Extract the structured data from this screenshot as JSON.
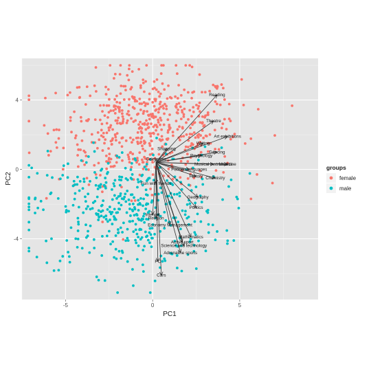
{
  "chart_data": {
    "type": "scatter",
    "subtype": "pca-biplot",
    "title": "",
    "xlabel": "PC1",
    "ylabel": "PC2",
    "xlim": [
      -7.5,
      9.5
    ],
    "ylim": [
      -7.5,
      6.4
    ],
    "x_ticks": [
      -5,
      0,
      5
    ],
    "y_ticks": [
      -4,
      0,
      4
    ],
    "x_tick_labels": [
      "-5",
      "0",
      "5"
    ],
    "y_tick_labels": [
      "-4",
      "0",
      "4"
    ],
    "grid": true,
    "background": "#e5e5e5",
    "legend": {
      "title": "groups",
      "position": "right",
      "entries": [
        {
          "name": "female",
          "color": "#f8766d"
        },
        {
          "name": "male",
          "color": "#00bfc4"
        }
      ]
    },
    "series": [
      {
        "name": "female",
        "color": "#f8766d",
        "count": 560,
        "center": [
          -0.2,
          2.4
        ],
        "spread": [
          2.6,
          1.6
        ]
      },
      {
        "name": "male",
        "color": "#00bfc4",
        "count": 430,
        "center": [
          -1.5,
          -2.4
        ],
        "spread": [
          2.7,
          1.8
        ]
      }
    ],
    "vector_origin": [
      0.2,
      0.4
    ],
    "loadings": [
      {
        "label": "Reading",
        "x": 3.7,
        "y": 4.3
      },
      {
        "label": "Theatre",
        "x": 3.5,
        "y": 2.8
      },
      {
        "label": "Art exhibitions",
        "x": 4.3,
        "y": 1.9
      },
      {
        "label": "Writing",
        "x": 2.9,
        "y": 1.5
      },
      {
        "label": "Dancing",
        "x": 3.7,
        "y": 1.0
      },
      {
        "label": "Psychology",
        "x": 2.8,
        "y": 0.8
      },
      {
        "label": "Shopping",
        "x": 0.8,
        "y": 1.2
      },
      {
        "label": "Celebrities",
        "x": 0.2,
        "y": 0.6
      },
      {
        "label": "Musical instruments",
        "x": 3.5,
        "y": 0.3
      },
      {
        "label": "Medicine",
        "x": 4.3,
        "y": 0.3
      },
      {
        "label": "Foreign languages",
        "x": 2.1,
        "y": 0.0
      },
      {
        "label": "History",
        "x": 2.5,
        "y": -0.4
      },
      {
        "label": "Chemistry",
        "x": 3.6,
        "y": -0.5
      },
      {
        "label": "Fun with friends",
        "x": 0.2,
        "y": -0.8
      },
      {
        "label": "Geography",
        "x": 2.6,
        "y": -1.6
      },
      {
        "label": "Politics",
        "x": 2.5,
        "y": -2.2
      },
      {
        "label": "Internet",
        "x": 0.0,
        "y": -2.6
      },
      {
        "label": "Religion",
        "x": 0.2,
        "y": -2.8
      },
      {
        "label": "Economy Management",
        "x": 1.0,
        "y": -3.2
      },
      {
        "label": "Mathematics",
        "x": 2.2,
        "y": -3.9
      },
      {
        "label": "Active sport",
        "x": 1.7,
        "y": -4.2
      },
      {
        "label": "Science and technology",
        "x": 1.8,
        "y": -4.4
      },
      {
        "label": "Adrenaline sports",
        "x": 1.6,
        "y": -4.8
      },
      {
        "label": "PC",
        "x": 0.3,
        "y": -5.3
      },
      {
        "label": "Cars",
        "x": 0.5,
        "y": -6.1
      }
    ]
  }
}
